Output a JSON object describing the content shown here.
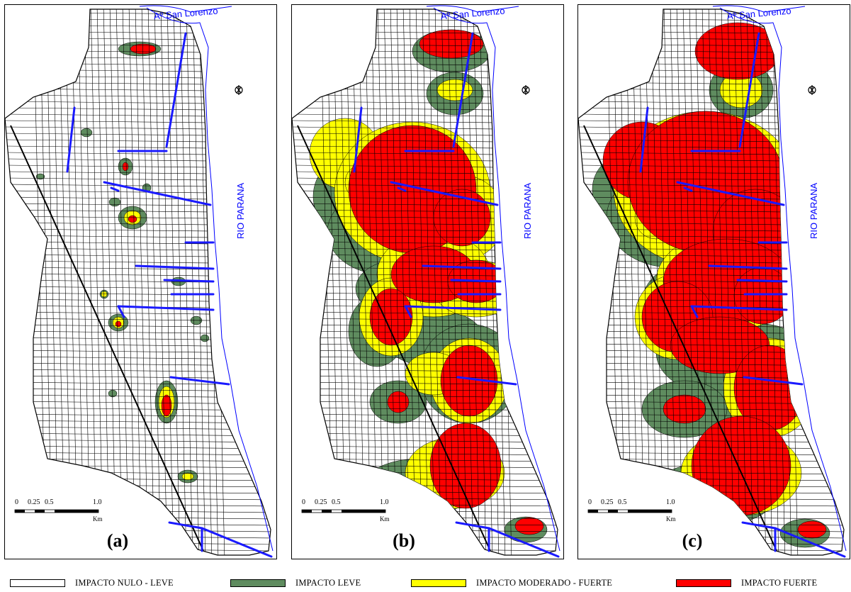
{
  "panels": [
    {
      "label": "(a)",
      "river_label": "RIO PARANA",
      "stream_label": "Aº San Lorenzo",
      "north_symbol": "north-arrow-icon"
    },
    {
      "label": "(b)",
      "river_label": "RIO PARANA",
      "stream_label": "Aº San Lorenzo",
      "north_symbol": "north-arrow-icon"
    },
    {
      "label": "(c)",
      "river_label": "RIO PARANA",
      "stream_label": "Aº San Lorenzo",
      "north_symbol": "north-arrow-icon"
    }
  ],
  "scale_bar": {
    "ticks": [
      "0",
      "0.25",
      "0.5",
      "1.0"
    ],
    "unit": "Km"
  },
  "legend": [
    {
      "label": "IMPACTO NULO - LEVE",
      "color": "#ffffff"
    },
    {
      "label": "IMPACTO LEVE",
      "color": "#5f8c5f"
    },
    {
      "label": "IMPACTO MODERADO - FUERTE",
      "color": "#ffff00"
    },
    {
      "label": "IMPACTO FUERTE",
      "color": "#ff0000"
    }
  ],
  "colors": {
    "streets": "#000000",
    "water": "#0000ff",
    "drainage": "#1a1aff"
  }
}
